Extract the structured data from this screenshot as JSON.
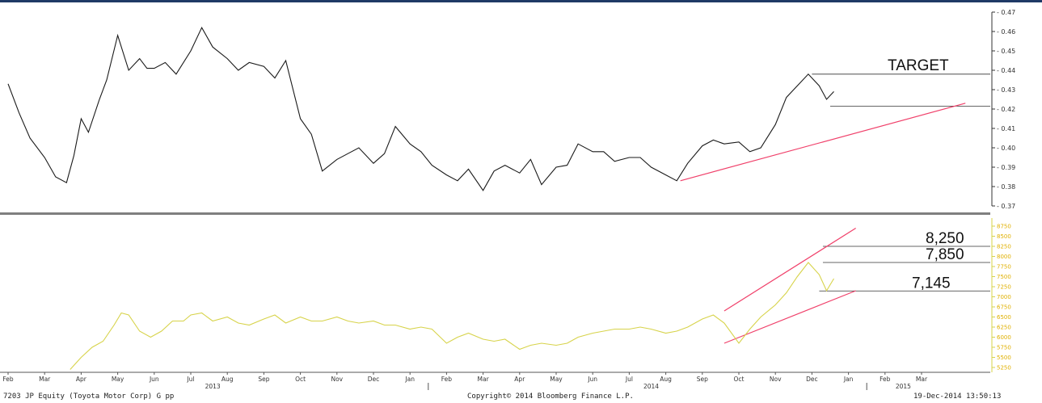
{
  "footer": {
    "security": "7203 JP Equity (Toyota Motor Corp) G pp",
    "copyright": "Copyright© 2014 Bloomberg Finance L.P.",
    "timestamp": "19-Dec-2014 13:50:13"
  },
  "colors": {
    "top_line": "#1a1a1a",
    "bottom_line": "#d7d34a",
    "trend": "#f0406a",
    "divider": "#7f7f7f",
    "level": "#333333",
    "border_top": "#1f3a66"
  },
  "x_axis": {
    "months": [
      "Feb",
      "Mar",
      "Apr",
      "May",
      "Jun",
      "Jul",
      "Aug",
      "Sep",
      "Oct",
      "Nov",
      "Dec",
      "Jan",
      "Feb",
      "Mar",
      "Apr",
      "May",
      "Jun",
      "Jul",
      "Aug",
      "Sep",
      "Oct",
      "Nov",
      "Dec",
      "Jan",
      "Feb",
      "Mar"
    ],
    "years": [
      "2013",
      "2014",
      "2015"
    ]
  },
  "chart_data": [
    {
      "type": "line",
      "panel": "top",
      "ylim": [
        0.37,
        0.47
      ],
      "yticks": [
        "0.47",
        "0.46",
        "0.45",
        "0.44",
        "0.43",
        "0.42",
        "0.41",
        "0.40",
        "0.39",
        "0.38",
        "0.37"
      ],
      "series": [
        {
          "x": [
            0,
            0.3,
            0.6,
            1.0,
            1.3,
            1.6,
            1.8,
            2.0,
            2.2,
            2.5,
            2.7,
            3.0,
            3.3,
            3.6,
            3.8,
            4.0,
            4.3,
            4.6,
            5.0,
            5.3,
            5.6,
            6.0,
            6.3,
            6.6,
            7.0,
            7.3,
            7.6,
            8.0,
            8.3,
            8.6,
            9.0,
            9.3,
            9.6,
            10.0,
            10.3,
            10.6,
            11.0,
            11.3,
            11.6,
            12.0,
            12.3,
            12.6,
            13.0,
            13.3,
            13.6,
            14.0,
            14.3,
            14.6,
            15.0,
            15.3,
            15.6,
            16.0,
            16.3,
            16.6,
            17.0,
            17.3,
            17.6,
            18.0,
            18.3,
            18.6,
            19.0,
            19.3,
            19.6,
            20.0,
            20.3,
            20.6,
            21.0,
            21.3,
            21.6,
            21.9,
            22.2,
            22.4,
            22.6
          ],
          "y": [
            0.433,
            0.418,
            0.405,
            0.395,
            0.385,
            0.382,
            0.396,
            0.415,
            0.408,
            0.425,
            0.435,
            0.458,
            0.44,
            0.446,
            0.441,
            0.441,
            0.444,
            0.438,
            0.45,
            0.462,
            0.452,
            0.446,
            0.44,
            0.444,
            0.442,
            0.436,
            0.445,
            0.415,
            0.407,
            0.388,
            0.394,
            0.397,
            0.4,
            0.392,
            0.397,
            0.411,
            0.402,
            0.398,
            0.391,
            0.386,
            0.383,
            0.389,
            0.378,
            0.388,
            0.391,
            0.387,
            0.394,
            0.381,
            0.39,
            0.391,
            0.402,
            0.398,
            0.398,
            0.393,
            0.395,
            0.395,
            0.39,
            0.386,
            0.383,
            0.392,
            0.401,
            0.404,
            0.402,
            0.403,
            0.398,
            0.4,
            0.412,
            0.426,
            0.432,
            0.438,
            0.432,
            0.425,
            0.429
          ]
        }
      ],
      "trendline": {
        "x": [
          18.4,
          26.2
        ],
        "y": [
          0.383,
          0.423
        ]
      },
      "levels": [
        {
          "label": "TARGET",
          "y": 0.438,
          "x_start": 22.0
        },
        {
          "label": "",
          "y": 0.4215,
          "x_start": 22.5
        }
      ]
    },
    {
      "type": "line",
      "panel": "bottom",
      "ylim": [
        5150,
        8850
      ],
      "yticks": [
        "8750",
        "8500",
        "8250",
        "8000",
        "7750",
        "7500",
        "7250",
        "7000",
        "6750",
        "6500",
        "6250",
        "6000",
        "5750",
        "5500",
        "5250"
      ],
      "series": [
        {
          "x": [
            1.7,
            2.0,
            2.3,
            2.6,
            2.9,
            3.1,
            3.3,
            3.6,
            3.9,
            4.2,
            4.5,
            4.8,
            5.0,
            5.3,
            5.6,
            6.0,
            6.3,
            6.6,
            7.0,
            7.3,
            7.6,
            8.0,
            8.3,
            8.6,
            9.0,
            9.3,
            9.6,
            10.0,
            10.3,
            10.6,
            11.0,
            11.3,
            11.6,
            12.0,
            12.3,
            12.6,
            13.0,
            13.3,
            13.6,
            14.0,
            14.3,
            14.6,
            15.0,
            15.3,
            15.6,
            16.0,
            16.3,
            16.6,
            17.0,
            17.3,
            17.6,
            18.0,
            18.3,
            18.6,
            19.0,
            19.3,
            19.6,
            20.0,
            20.3,
            20.6,
            21.0,
            21.3,
            21.6,
            21.9,
            22.2,
            22.4,
            22.6
          ],
          "y": [
            5200,
            5500,
            5750,
            5900,
            6300,
            6600,
            6550,
            6150,
            6000,
            6150,
            6400,
            6400,
            6550,
            6600,
            6400,
            6500,
            6350,
            6300,
            6450,
            6550,
            6350,
            6500,
            6400,
            6400,
            6500,
            6400,
            6350,
            6400,
            6300,
            6300,
            6200,
            6250,
            6200,
            5850,
            6000,
            6100,
            5950,
            5900,
            5950,
            5700,
            5800,
            5850,
            5800,
            5850,
            6000,
            6100,
            6150,
            6200,
            6200,
            6250,
            6200,
            6100,
            6150,
            6250,
            6450,
            6550,
            6350,
            5850,
            6200,
            6500,
            6800,
            7100,
            7500,
            7850,
            7550,
            7150,
            7450
          ]
        }
      ],
      "channel": [
        {
          "x": [
            19.6,
            23.2
          ],
          "y": [
            5850,
            7150
          ]
        },
        {
          "x": [
            19.6,
            23.2
          ],
          "y": [
            6650,
            8700
          ]
        }
      ],
      "levels": [
        {
          "label": "8,250",
          "y": 8250,
          "x_start": 22.3
        },
        {
          "label": "7,850",
          "y": 7850,
          "x_start": 22.3
        },
        {
          "label": "7,145",
          "y": 7145,
          "x_start": 22.2
        }
      ]
    }
  ]
}
